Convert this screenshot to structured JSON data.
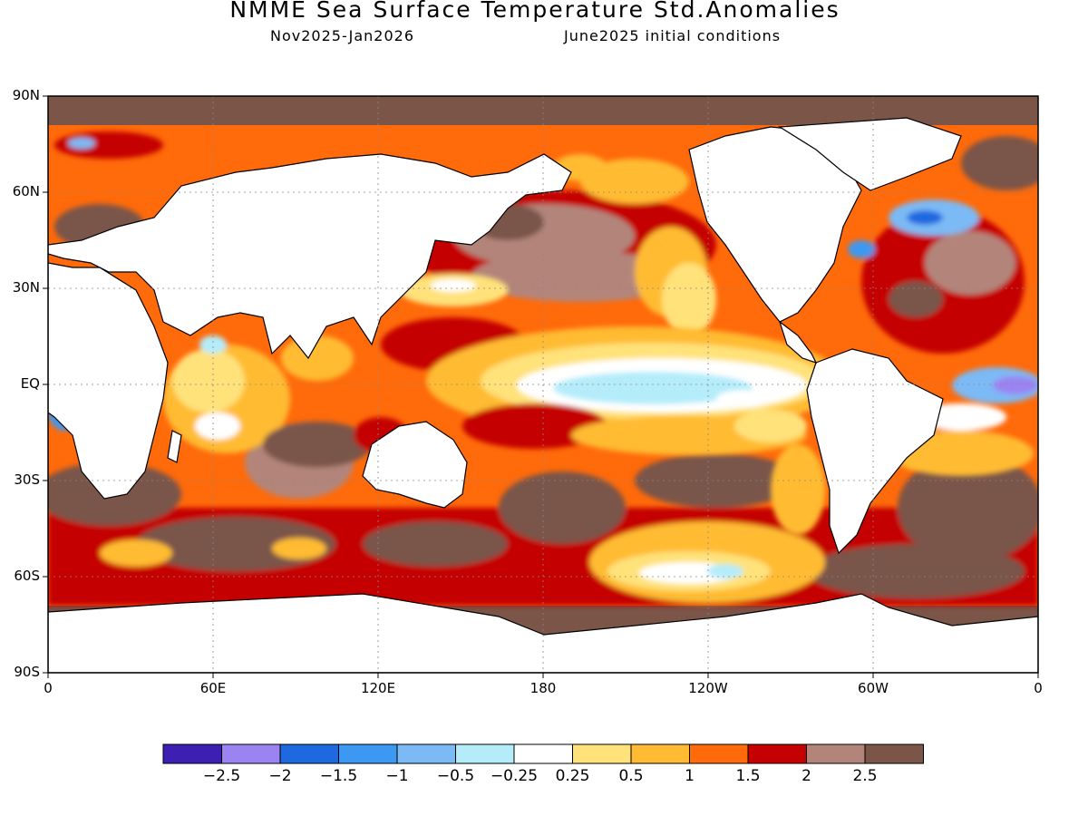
{
  "header": {
    "title": "NMME Sea Surface Temperature Std.Anomalies",
    "period": "Nov2025-Jan2026",
    "init": "June2025 initial conditions"
  },
  "map": {
    "projection": "cylindrical equidistant",
    "lat_ticks": [
      "90N",
      "60N",
      "30N",
      "EQ",
      "30S",
      "60S",
      "90S"
    ],
    "lon_ticks": [
      "0",
      "60E",
      "120E",
      "180",
      "120W",
      "60W",
      "0"
    ],
    "grid": "dotted",
    "colors": {
      "land": "#ffffff",
      "sea_ice_mask": "#7a5548",
      "coast": "#000000"
    }
  },
  "legend": {
    "labels": [
      "-2.5",
      "-2",
      "-1.5",
      "-1",
      "-0.5",
      "-0.25",
      "0.25",
      "0.5",
      "1",
      "1.5",
      "2",
      "2.5"
    ],
    "colors": [
      "#3d1fb3",
      "#9b83f2",
      "#1e68e0",
      "#3c98f0",
      "#7bbaf5",
      "#b4ecfa",
      "#ffffff",
      "#ffe27a",
      "#ffbb33",
      "#ff6a0a",
      "#c40000",
      "#b3857a",
      "#7a5548"
    ]
  }
}
